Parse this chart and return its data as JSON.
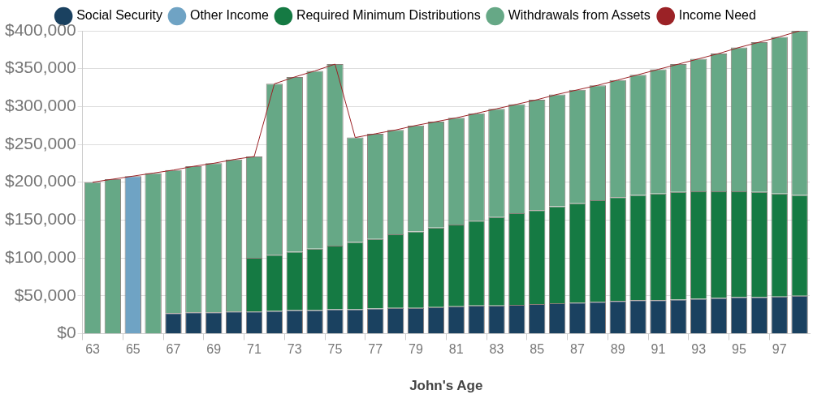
{
  "chart_data": {
    "type": "bar",
    "stacked": true,
    "xlabel": "John's Age",
    "categories": [
      "63",
      null,
      "65",
      null,
      "67",
      null,
      "69",
      null,
      "71",
      null,
      "73",
      null,
      "75",
      null,
      "77",
      null,
      "79",
      null,
      "81",
      null,
      "83",
      null,
      "85",
      null,
      "87",
      null,
      "89",
      null,
      "91",
      null,
      "93",
      null,
      "95",
      null,
      "97",
      null
    ],
    "series": [
      {
        "name": "Social Security",
        "color": "#1a4160",
        "values": [
          null,
          null,
          null,
          null,
          27000,
          28000,
          28000,
          29000,
          29000,
          30000,
          31000,
          31000,
          32000,
          32000,
          33000,
          34000,
          34000,
          35000,
          36000,
          37000,
          37000,
          38000,
          39000,
          40000,
          41000,
          42000,
          43000,
          44000,
          44000,
          45000,
          46000,
          47000,
          48000,
          48000,
          49000,
          50000
        ]
      },
      {
        "name": "Other Income",
        "color": "#6fa3c4",
        "values": [
          null,
          null,
          208000,
          null,
          null,
          null,
          null,
          null,
          null,
          null,
          null,
          null,
          null,
          null,
          null,
          null,
          null,
          null,
          null,
          null,
          null,
          null,
          null,
          null,
          null,
          null,
          null,
          null,
          null,
          null,
          null,
          null,
          null,
          null,
          null,
          null
        ]
      },
      {
        "name": "Required Minimum Distributions",
        "color": "#157a43",
        "values": [
          null,
          null,
          null,
          null,
          null,
          null,
          null,
          null,
          71000,
          74000,
          77000,
          81000,
          84000,
          89000,
          92000,
          97000,
          101000,
          105000,
          108000,
          112000,
          117000,
          121000,
          124000,
          128000,
          131000,
          134000,
          137000,
          139000,
          141000,
          142000,
          142000,
          141000,
          140000,
          139000,
          136000,
          133000
        ]
      },
      {
        "name": "Withdrawals from Assets",
        "color": "#66a886",
        "values": [
          200000,
          204000,
          null,
          212000,
          189000,
          193000,
          197000,
          201000,
          134000,
          226000,
          231000,
          235000,
          240000,
          138000,
          139000,
          138000,
          140000,
          140000,
          141000,
          142000,
          143000,
          144000,
          146000,
          148000,
          150000,
          152000,
          155000,
          159000,
          164000,
          169000,
          175000,
          182000,
          190000,
          198000,
          207000,
          217000
        ]
      },
      {
        "name": "Income Need",
        "type": "line",
        "color": "#9b2226",
        "values": [
          200000,
          204000,
          208000,
          212000,
          216000,
          221000,
          225000,
          230000,
          234000,
          330000,
          339000,
          347000,
          356000,
          259000,
          264000,
          269000,
          275000,
          280000,
          285000,
          291000,
          297000,
          303000,
          309000,
          316000,
          322000,
          328000,
          335000,
          342000,
          349000,
          356000,
          363000,
          370000,
          378000,
          385000,
          392000,
          400000
        ]
      }
    ],
    "ylim": [
      0,
      400000
    ],
    "yticks": [
      {
        "value": 0,
        "label": "$0"
      },
      {
        "value": 50000,
        "label": "$50,000"
      },
      {
        "value": 100000,
        "label": "$100,000"
      },
      {
        "value": 150000,
        "label": "$150,000"
      },
      {
        "value": 200000,
        "label": "$200,000"
      },
      {
        "value": 250000,
        "label": "$250,000"
      },
      {
        "value": 300000,
        "label": "$300,000"
      },
      {
        "value": 350000,
        "label": "$350,000"
      },
      {
        "value": 400000,
        "label": "$400,000"
      }
    ],
    "grid": "y",
    "legend": "top",
    "marker": "none"
  }
}
